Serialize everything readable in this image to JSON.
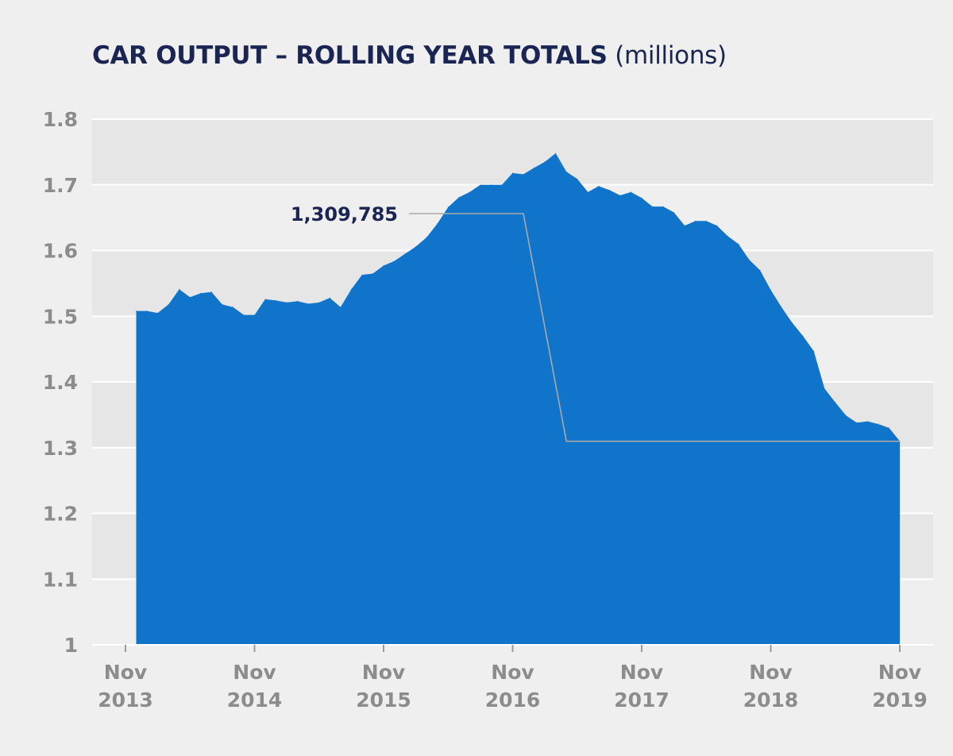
{
  "chart_data": {
    "type": "area",
    "title": "CAR OUTPUT – ROLLING YEAR TOTALS",
    "title_unit": "(millions)",
    "xlabel": "",
    "ylabel": "",
    "ylim": [
      1,
      1.8
    ],
    "yticks": [
      "1.8",
      "1.7",
      "1.6",
      "1.5",
      "1.4",
      "1.3",
      "1.2",
      "1.1",
      "1"
    ],
    "ytick_values": [
      1.8,
      1.7,
      1.6,
      1.5,
      1.4,
      1.3,
      1.2,
      1.1,
      1.0
    ],
    "xticks": [
      {
        "line1": "Nov",
        "line2": "2013",
        "date": "2013-11"
      },
      {
        "line1": "Nov",
        "line2": "2014",
        "date": "2014-11"
      },
      {
        "line1": "Nov",
        "line2": "2015",
        "date": "2015-11"
      },
      {
        "line1": "Nov",
        "line2": "2016",
        "date": "2016-11"
      },
      {
        "line1": "Nov",
        "line2": "2017",
        "date": "2017-11"
      },
      {
        "line1": "Nov",
        "line2": "2018",
        "date": "2018-11"
      },
      {
        "line1": "Nov",
        "line2": "2019",
        "date": "2019-11"
      }
    ],
    "grid": "horizontal bands",
    "series": [
      {
        "color": "#1174cb",
        "x": [
          "2013-12",
          "2014-01",
          "2014-02",
          "2014-03",
          "2014-04",
          "2014-05",
          "2014-06",
          "2014-07",
          "2014-08",
          "2014-09",
          "2014-10",
          "2014-11",
          "2014-12",
          "2015-01",
          "2015-02",
          "2015-03",
          "2015-04",
          "2015-05",
          "2015-06",
          "2015-07",
          "2015-08",
          "2015-09",
          "2015-10",
          "2015-11",
          "2015-12",
          "2016-01",
          "2016-02",
          "2016-03",
          "2016-04",
          "2016-05",
          "2016-06",
          "2016-07",
          "2016-08",
          "2016-09",
          "2016-10",
          "2016-11",
          "2016-12",
          "2017-01",
          "2017-02",
          "2017-03",
          "2017-04",
          "2017-05",
          "2017-06",
          "2017-07",
          "2017-08",
          "2017-09",
          "2017-10",
          "2017-11",
          "2017-12",
          "2018-01",
          "2018-02",
          "2018-03",
          "2018-04",
          "2018-05",
          "2018-06",
          "2018-07",
          "2018-08",
          "2018-09",
          "2018-10",
          "2018-11",
          "2018-12",
          "2019-01",
          "2019-02",
          "2019-03",
          "2019-04",
          "2019-05",
          "2019-06",
          "2019-07",
          "2019-08",
          "2019-09",
          "2019-10",
          "2019-11"
        ],
        "values": [
          1.508,
          1.508,
          1.505,
          1.518,
          1.541,
          1.529,
          1.535,
          1.537,
          1.518,
          1.514,
          1.502,
          1.502,
          1.526,
          1.524,
          1.521,
          1.523,
          1.519,
          1.521,
          1.528,
          1.514,
          1.541,
          1.563,
          1.565,
          1.577,
          1.584,
          1.595,
          1.606,
          1.62,
          1.641,
          1.666,
          1.681,
          1.689,
          1.7,
          1.7,
          1.7,
          1.718,
          1.716,
          1.726,
          1.735,
          1.748,
          1.72,
          1.709,
          1.689,
          1.698,
          1.692,
          1.684,
          1.689,
          1.68,
          1.667,
          1.667,
          1.658,
          1.638,
          1.645,
          1.645,
          1.638,
          1.622,
          1.61,
          1.586,
          1.57,
          1.54,
          1.514,
          1.49,
          1.47,
          1.447,
          1.39,
          1.369,
          1.349,
          1.338,
          1.34,
          1.336,
          1.33,
          1.31
        ]
      }
    ],
    "annotation": {
      "label": "1,309,785",
      "value": 1.309785,
      "anchor_date": "2016-12",
      "drop_date": "2017-04"
    }
  }
}
